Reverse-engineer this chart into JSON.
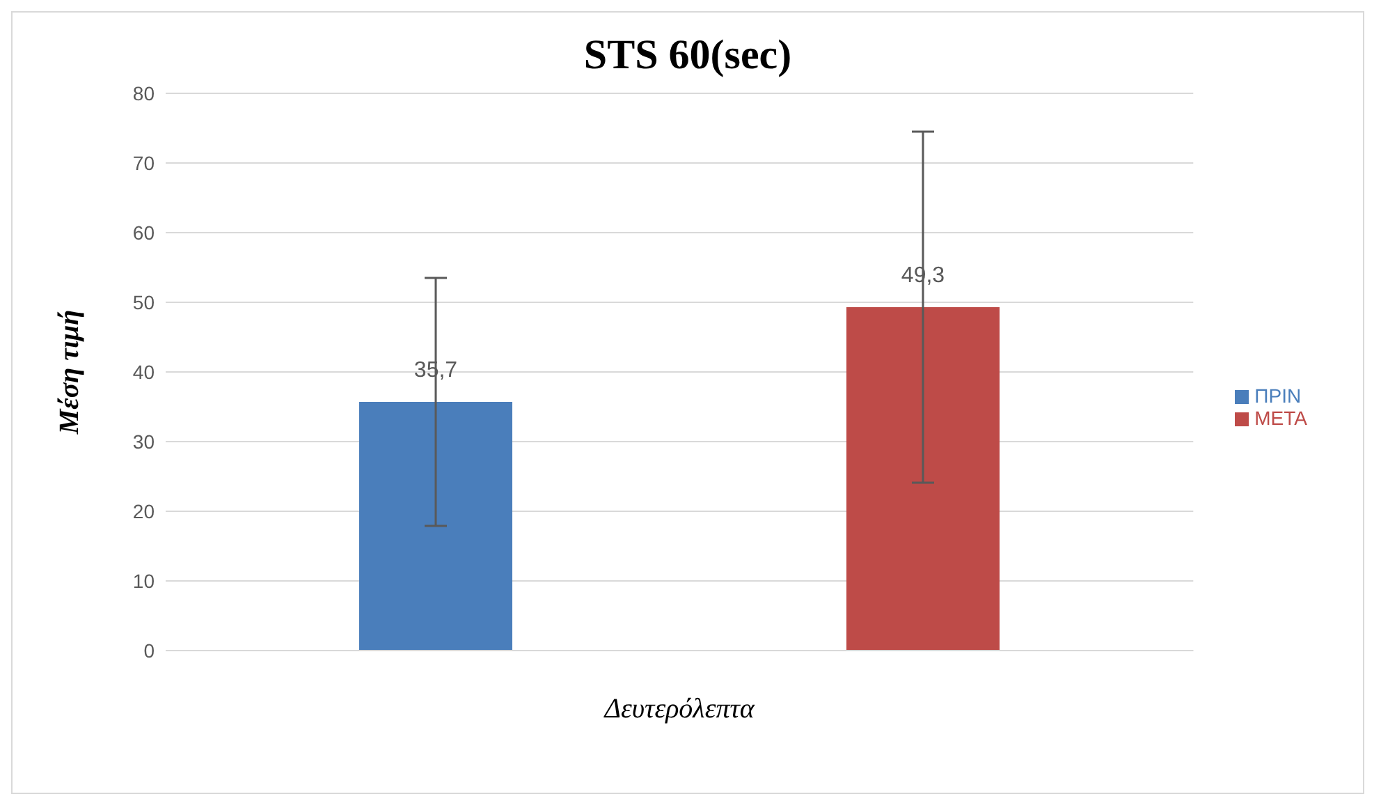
{
  "chart_data": {
    "type": "bar",
    "title": "STS 60(sec)",
    "xlabel": "Δευτερόλεπτα",
    "ylabel": "Μέση τιμή",
    "categories": [
      null
    ],
    "series": [
      {
        "name": "ΠΡΙΝ",
        "color": "#4a7ebb",
        "values": [
          35.7
        ],
        "errors": [
          17.8
        ],
        "value_labels": [
          "35,7"
        ]
      },
      {
        "name": "ΜΕΤΑ",
        "color": "#be4b48",
        "values": [
          49.3
        ],
        "errors": [
          25.2
        ],
        "value_labels": [
          "49,3"
        ]
      }
    ],
    "ylim": [
      0,
      80
    ],
    "yticks": [
      0,
      10,
      20,
      30,
      40,
      50,
      60,
      70,
      80
    ],
    "grid": "y",
    "legend": "right"
  }
}
